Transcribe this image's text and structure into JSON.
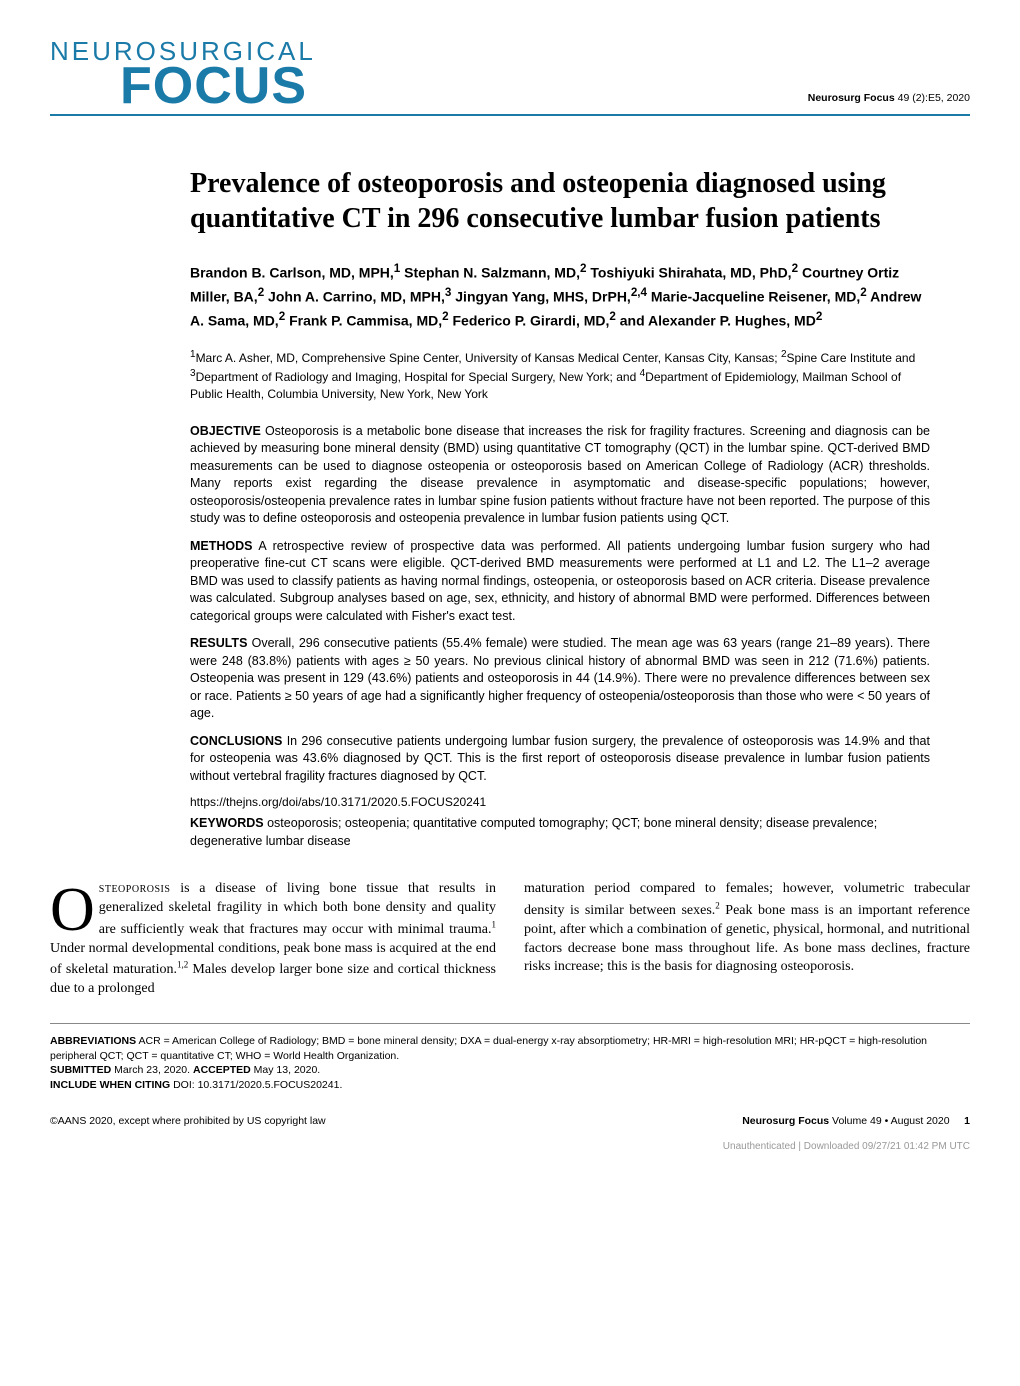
{
  "header": {
    "logo_top": "NEUROSURGICAL",
    "logo_bottom": "FOCUS",
    "citation_journal": "Neurosurg Focus",
    "citation_ref": " 49 (2):E5, 2020"
  },
  "article": {
    "title": "Prevalence of osteoporosis and osteopenia diagnosed using quantitative CT in 296 consecutive lumbar fusion patients",
    "authors_html": "Brandon B. Carlson, MD, MPH,<sup>1</sup> Stephan N. Salzmann, MD,<sup>2</sup> Toshiyuki Shirahata, MD, PhD,<sup>2</sup> Courtney Ortiz Miller, BA,<sup>2</sup> John A. Carrino, MD, MPH,<sup>3</sup> Jingyan Yang, MHS, DrPH,<sup>2,4</sup> Marie-Jacqueline Reisener, MD,<sup>2</sup> Andrew A. Sama, MD,<sup>2</sup> Frank P. Cammisa, MD,<sup>2</sup> Federico P. Girardi, MD,<sup>2</sup> and Alexander P. Hughes, MD<sup>2</sup>",
    "affiliations_html": "<sup>1</sup>Marc A. Asher, MD, Comprehensive Spine Center, University of Kansas Medical Center, Kansas City, Kansas; <sup>2</sup>Spine Care Institute and <sup>3</sup>Department of Radiology and Imaging, Hospital for Special Surgery, New York; and <sup>4</sup>Department of Epidemiology, Mailman School of Public Health, Columbia University, New York, New York",
    "abstract": {
      "objective": {
        "label": "OBJECTIVE",
        "text": "Osteoporosis is a metabolic bone disease that increases the risk for fragility fractures. Screening and diagnosis can be achieved by measuring bone mineral density (BMD) using quantitative CT tomography (QCT) in the lumbar spine. QCT-derived BMD measurements can be used to diagnose osteopenia or osteoporosis based on American College of Radiology (ACR) thresholds. Many reports exist regarding the disease prevalence in asymptomatic and disease-specific populations; however, osteoporosis/osteopenia prevalence rates in lumbar spine fusion patients without fracture have not been reported. The purpose of this study was to define osteoporosis and osteopenia prevalence in lumbar fusion patients using QCT."
      },
      "methods": {
        "label": "METHODS",
        "text": "A retrospective review of prospective data was performed. All patients undergoing lumbar fusion surgery who had preoperative fine-cut CT scans were eligible. QCT-derived BMD measurements were performed at L1 and L2. The L1–2 average BMD was used to classify patients as having normal findings, osteopenia, or osteoporosis based on ACR criteria. Disease prevalence was calculated. Subgroup analyses based on age, sex, ethnicity, and history of abnormal BMD were performed. Differences between categorical groups were calculated with Fisher's exact test."
      },
      "results": {
        "label": "RESULTS",
        "text": "Overall, 296 consecutive patients (55.4% female) were studied. The mean age was 63 years (range 21–89 years). There were 248 (83.8%) patients with ages ≥ 50 years. No previous clinical history of abnormal BMD was seen in 212 (71.6%) patients. Osteopenia was present in 129 (43.6%) patients and osteoporosis in 44 (14.9%). There were no prevalence differences between sex or race. Patients ≥ 50 years of age had a significantly higher frequency of osteopenia/osteoporosis than those who were < 50 years of age."
      },
      "conclusions": {
        "label": "CONCLUSIONS",
        "text": "In 296 consecutive patients undergoing lumbar fusion surgery, the prevalence of osteoporosis was 14.9% and that for osteopenia was 43.6% diagnosed by QCT. This is the first report of osteoporosis disease prevalence in lumbar fusion patients without vertebral fragility fractures diagnosed by QCT."
      }
    },
    "doi_url": "https://thejns.org/doi/abs/10.3171/2020.5.FOCUS20241",
    "keywords_label": "KEYWORDS",
    "keywords_text": "osteoporosis; osteopenia; quantitative computed tomography; QCT; bone mineral density; disease prevalence; degenerative lumbar disease"
  },
  "body": {
    "dropcap": "O",
    "col1_html": "<span class=\"smallcaps\">steoporosis</span> is a disease of living bone tissue that results in generalized skeletal fragility in which both bone density and quality are sufficiently weak that fractures may occur with minimal trauma.<sup class=\"body-sup\">1</sup> Under normal developmental conditions, peak bone mass is acquired at the end of skeletal maturation.<sup class=\"body-sup\">1,2</sup> Males develop larger bone size and cortical thickness due to a prolonged",
    "col2_html": "maturation period compared to females; however, volumetric trabecular density is similar between sexes.<sup class=\"body-sup\">2</sup> Peak bone mass is an important reference point, after which a combination of genetic, physical, hormonal, and nutritional factors decrease bone mass throughout life. As bone mass declines, fracture risks increase; this is the basis for diagnosing osteoporosis."
  },
  "footer": {
    "abbrev_label": "ABBREVIATIONS",
    "abbrev_text": "ACR = American College of Radiology; BMD = bone mineral density; DXA = dual-energy x-ray absorptiometry; HR-MRI = high-resolution MRI; HR-pQCT = high-resolution peripheral QCT; QCT = quantitative CT; WHO = World Health Organization.",
    "submitted_label": "SUBMITTED",
    "submitted_text": "March 23, 2020.",
    "accepted_label": "ACCEPTED",
    "accepted_text": "May 13, 2020.",
    "citing_label": "INCLUDE WHEN CITING",
    "citing_text": "DOI: 10.3171/2020.5.FOCUS20241.",
    "copyright": "©AANS 2020, except where prohibited by US copyright law",
    "journal_issue": "Neurosurg Focus",
    "volume_text": "Volume 49 • August 2020",
    "page": "1",
    "watermark": "Unauthenticated | Downloaded 09/27/21 01:42 PM UTC"
  }
}
